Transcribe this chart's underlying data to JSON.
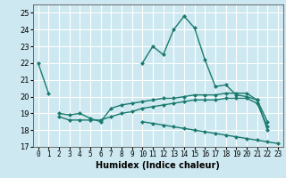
{
  "xlabel": "Humidex (Indice chaleur)",
  "xlim": [
    -0.5,
    23.5
  ],
  "ylim": [
    17,
    25.5
  ],
  "yticks": [
    17,
    18,
    19,
    20,
    21,
    22,
    23,
    24,
    25
  ],
  "xticks": [
    0,
    1,
    2,
    3,
    4,
    5,
    6,
    7,
    8,
    9,
    10,
    11,
    12,
    13,
    14,
    15,
    16,
    17,
    18,
    19,
    20,
    21,
    22,
    23
  ],
  "bg_color": "#cde8f0",
  "line_color": "#1a7a6e",
  "grid_color": "#ffffff",
  "line1_y": [
    22.0,
    20.2,
    null,
    null,
    null,
    null,
    null,
    null,
    null,
    null,
    22.0,
    23.0,
    22.5,
    24.0,
    24.8,
    24.1,
    22.2,
    20.6,
    20.7,
    20.1,
    20.0,
    19.8,
    18.0,
    null
  ],
  "line2_y": [
    null,
    null,
    19.0,
    18.9,
    19.0,
    18.7,
    18.5,
    19.3,
    19.5,
    19.6,
    19.7,
    19.8,
    19.9,
    19.9,
    20.0,
    20.1,
    20.1,
    20.1,
    20.2,
    20.2,
    20.2,
    19.8,
    18.5,
    null
  ],
  "line3_y": [
    null,
    null,
    18.8,
    18.6,
    18.6,
    18.6,
    18.6,
    18.8,
    19.0,
    19.1,
    19.3,
    19.4,
    19.5,
    19.6,
    19.7,
    19.8,
    19.8,
    19.8,
    19.9,
    19.9,
    19.9,
    19.6,
    18.2,
    null
  ],
  "line4_y": [
    null,
    null,
    null,
    null,
    null,
    null,
    null,
    null,
    null,
    null,
    18.5,
    18.4,
    18.3,
    18.2,
    18.1,
    18.0,
    17.9,
    17.8,
    17.7,
    17.6,
    17.5,
    17.4,
    17.3,
    17.2
  ],
  "marker_size": 2.5,
  "line_width": 1.0
}
